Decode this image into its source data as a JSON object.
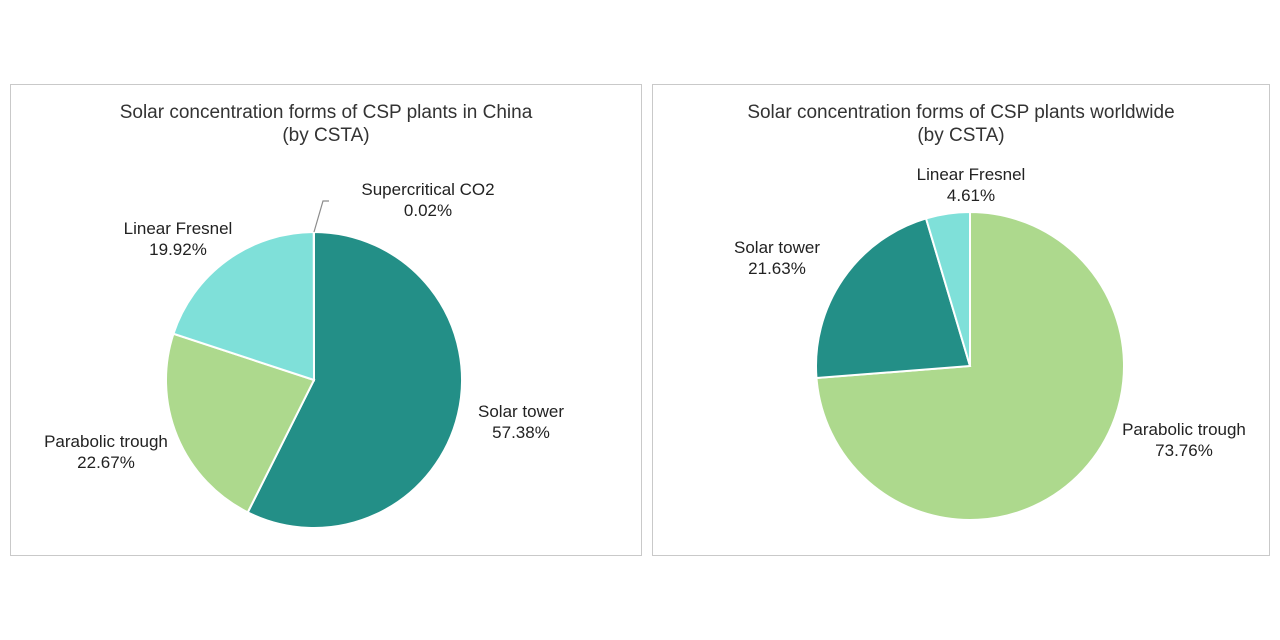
{
  "chart_data": [
    {
      "type": "pie",
      "title": "Solar concentration forms of CSP plants in China",
      "subtitle": "(by CSTA)",
      "slices": [
        {
          "label": "Solar tower",
          "value": 57.38,
          "display": "57.38%",
          "color": "#238F87"
        },
        {
          "label": "Parabolic trough",
          "value": 22.67,
          "display": "22.67%",
          "color": "#ADD98D"
        },
        {
          "label": "Linear Fresnel",
          "value": 19.92,
          "display": "19.92%",
          "color": "#7FE0D9"
        },
        {
          "label": "Supercritical CO2",
          "value": 0.02,
          "display": "0.02%",
          "color": "#1C6E68"
        }
      ]
    },
    {
      "type": "pie",
      "title": "Solar concentration forms of CSP plants worldwide",
      "subtitle": "(by CSTA)",
      "slices": [
        {
          "label": "Parabolic trough",
          "value": 73.76,
          "display": "73.76%",
          "color": "#ADD98D"
        },
        {
          "label": "Solar tower",
          "value": 21.63,
          "display": "21.63%",
          "color": "#238F87"
        },
        {
          "label": "Linear Fresnel",
          "value": 4.61,
          "display": "4.61%",
          "color": "#7FE0D9"
        }
      ]
    }
  ]
}
